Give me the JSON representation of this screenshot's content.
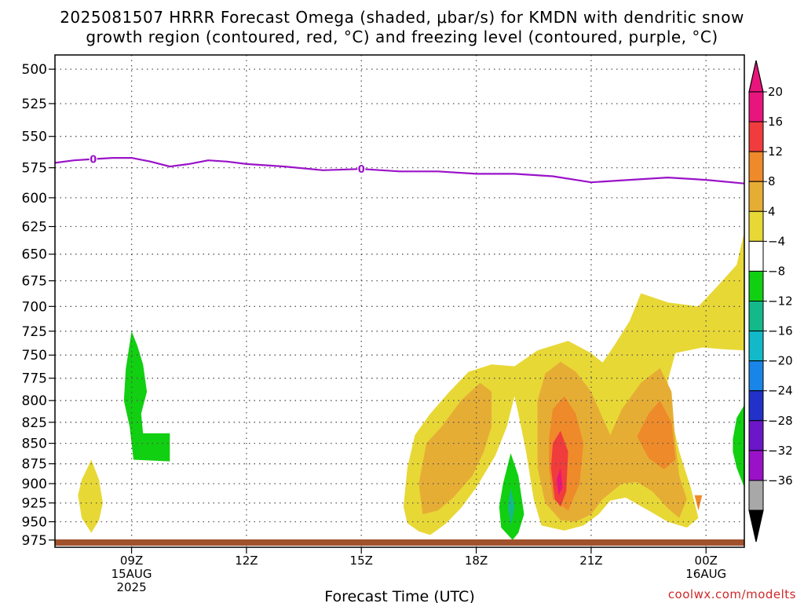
{
  "title_line1": "2025081507 HRRR Forecast Omega (shaded, μbar/s) for KMDN with dendritic snow",
  "title_line2": "growth region (contoured, red, °C) and freezing level (contoured, purple, °C)",
  "credit": "coolwx.com/modelts",
  "chart_data": {
    "type": "heatmap",
    "xlabel": "Forecast Time (UTC)",
    "ylabel": "",
    "x_ticks": [
      {
        "label": "09Z",
        "sub1": "15AUG",
        "sub2": "2025",
        "hour": 9
      },
      {
        "label": "12Z",
        "sub1": "",
        "sub2": "",
        "hour": 12
      },
      {
        "label": "15Z",
        "sub1": "",
        "sub2": "",
        "hour": 15
      },
      {
        "label": "18Z",
        "sub1": "",
        "sub2": "",
        "hour": 18
      },
      {
        "label": "21Z",
        "sub1": "",
        "sub2": "",
        "hour": 21
      },
      {
        "label": "00Z",
        "sub1": "16AUG",
        "sub2": "",
        "hour": 24
      }
    ],
    "xlim": [
      7.0,
      25.0
    ],
    "ylim": [
      985,
      490
    ],
    "y_ticks": [
      500,
      525,
      550,
      575,
      600,
      625,
      650,
      675,
      700,
      725,
      750,
      775,
      800,
      825,
      850,
      875,
      900,
      925,
      950,
      975
    ],
    "y_scale": "log-pressure",
    "grid": true,
    "freezing_level": {
      "label": "0",
      "label_hours": [
        8,
        15
      ],
      "points": [
        [
          7.0,
          571
        ],
        [
          7.5,
          569
        ],
        [
          8,
          568
        ],
        [
          8.5,
          567
        ],
        [
          9,
          567
        ],
        [
          9.5,
          570
        ],
        [
          10,
          574
        ],
        [
          10.5,
          572
        ],
        [
          11,
          569
        ],
        [
          11.5,
          570
        ],
        [
          12,
          572
        ],
        [
          13,
          574
        ],
        [
          14,
          577
        ],
        [
          15,
          576
        ],
        [
          16,
          578
        ],
        [
          17,
          578
        ],
        [
          18,
          580
        ],
        [
          19,
          580
        ],
        [
          20,
          582
        ],
        [
          21,
          587
        ],
        [
          22,
          585
        ],
        [
          23,
          583
        ],
        [
          24,
          585
        ],
        [
          25,
          588
        ]
      ]
    },
    "colorbar": {
      "levels": [
        {
          "label": "20",
          "color": "#e8157d"
        },
        {
          "label": "16",
          "color": "#f03c3c"
        },
        {
          "label": "12",
          "color": "#ee8a2a"
        },
        {
          "label": "8",
          "color": "#e6ad35"
        },
        {
          "label": "4",
          "color": "#e8d836"
        },
        {
          "label": "−4",
          "color": "#ffffff"
        },
        {
          "label": "−8",
          "color": "#11cf11"
        },
        {
          "label": "−12",
          "color": "#14b98a"
        },
        {
          "label": "−16",
          "color": "#12b9c8"
        },
        {
          "label": "−20",
          "color": "#1a85e8"
        },
        {
          "label": "−24",
          "color": "#2231c8"
        },
        {
          "label": "−28",
          "color": "#6b16c8"
        },
        {
          "label": "−32",
          "color": "#9a12c8"
        },
        {
          "label": "−36",
          "color": "#a8a8a8"
        }
      ],
      "top_color": "#e8157d",
      "bottom_color": "#000000"
    },
    "shaded_regions": [
      {
        "level": "4",
        "color": "#e8d836",
        "points": [
          [
            16.2,
            952
          ],
          [
            16.1,
            930
          ],
          [
            16.2,
            880
          ],
          [
            16.4,
            840
          ],
          [
            16.8,
            815
          ],
          [
            17.3,
            790
          ],
          [
            17.8,
            768
          ],
          [
            18.4,
            760
          ],
          [
            19.0,
            762
          ],
          [
            19.6,
            745
          ],
          [
            20.4,
            735
          ],
          [
            21.0,
            748
          ],
          [
            21.3,
            758
          ],
          [
            21.6,
            740
          ],
          [
            22.0,
            715
          ],
          [
            22.3,
            687
          ],
          [
            23.0,
            696
          ],
          [
            23.8,
            700
          ],
          [
            24.3,
            680
          ],
          [
            24.8,
            660
          ],
          [
            25.0,
            630
          ],
          [
            25.0,
            745
          ],
          [
            24.5,
            744
          ],
          [
            23.9,
            742
          ],
          [
            23.2,
            748
          ],
          [
            23.0,
            778
          ],
          [
            23.1,
            820
          ],
          [
            23.3,
            860
          ],
          [
            23.6,
            905
          ],
          [
            23.8,
            945
          ],
          [
            23.5,
            958
          ],
          [
            23.0,
            950
          ],
          [
            22.5,
            935
          ],
          [
            21.9,
            918
          ],
          [
            21.5,
            922
          ],
          [
            21.2,
            940
          ],
          [
            20.8,
            955
          ],
          [
            20.3,
            962
          ],
          [
            19.7,
            955
          ],
          [
            19.5,
            920
          ],
          [
            19.3,
            860
          ],
          [
            19.1,
            815
          ],
          [
            19.0,
            795
          ],
          [
            18.8,
            830
          ],
          [
            18.5,
            865
          ],
          [
            18.0,
            905
          ],
          [
            17.6,
            932
          ],
          [
            17.2,
            953
          ],
          [
            16.8,
            968
          ],
          [
            16.5,
            963
          ]
        ]
      },
      {
        "level": "8",
        "color": "#e6ad35",
        "points": [
          [
            16.6,
            940
          ],
          [
            16.5,
            900
          ],
          [
            16.7,
            850
          ],
          [
            17.1,
            830
          ],
          [
            17.6,
            800
          ],
          [
            18.1,
            780
          ],
          [
            18.4,
            790
          ],
          [
            18.4,
            830
          ],
          [
            18.2,
            860
          ],
          [
            17.9,
            890
          ],
          [
            17.4,
            918
          ],
          [
            17.0,
            935
          ]
        ]
      },
      {
        "level": "8",
        "color": "#e6ad35",
        "points": [
          [
            19.6,
            800
          ],
          [
            19.8,
            770
          ],
          [
            20.2,
            757
          ],
          [
            20.6,
            768
          ],
          [
            21.0,
            790
          ],
          [
            21.3,
            820
          ],
          [
            21.5,
            840
          ],
          [
            21.8,
            810
          ],
          [
            22.3,
            780
          ],
          [
            22.8,
            764
          ],
          [
            23.1,
            790
          ],
          [
            23.2,
            850
          ],
          [
            23.3,
            890
          ],
          [
            23.5,
            920
          ],
          [
            23.3,
            945
          ],
          [
            23.0,
            932
          ],
          [
            22.6,
            910
          ],
          [
            22.2,
            898
          ],
          [
            21.8,
            900
          ],
          [
            21.3,
            920
          ],
          [
            21.0,
            940
          ],
          [
            20.6,
            950
          ],
          [
            20.2,
            948
          ],
          [
            19.8,
            925
          ],
          [
            19.6,
            880
          ]
        ]
      },
      {
        "level": "12",
        "color": "#ee8a2a",
        "points": [
          [
            19.9,
            845
          ],
          [
            20.0,
            810
          ],
          [
            20.3,
            795
          ],
          [
            20.6,
            815
          ],
          [
            20.8,
            850
          ],
          [
            20.7,
            900
          ],
          [
            20.4,
            935
          ],
          [
            20.0,
            920
          ],
          [
            19.9,
            880
          ]
        ]
      },
      {
        "level": "12",
        "color": "#ee8a2a",
        "points": [
          [
            22.2,
            842
          ],
          [
            22.5,
            815
          ],
          [
            22.8,
            800
          ],
          [
            23.1,
            825
          ],
          [
            23.2,
            870
          ],
          [
            22.9,
            882
          ],
          [
            22.5,
            868
          ]
        ]
      },
      {
        "level": "12",
        "color": "#ee8a2a",
        "points": [
          [
            23.7,
            915
          ],
          [
            23.8,
            935
          ],
          [
            23.9,
            915
          ]
        ]
      },
      {
        "level": "16",
        "color": "#f03c3c",
        "points": [
          [
            19.95,
            880
          ],
          [
            20.0,
            850
          ],
          [
            20.2,
            835
          ],
          [
            20.4,
            860
          ],
          [
            20.35,
            910
          ],
          [
            20.2,
            930
          ],
          [
            20.05,
            920
          ]
        ]
      },
      {
        "level": "20",
        "color": "#e8157d",
        "points": [
          [
            20.1,
            895
          ],
          [
            20.2,
            880
          ],
          [
            20.25,
            905
          ],
          [
            20.15,
            915
          ]
        ]
      },
      {
        "level": "4",
        "color": "#e8d836",
        "points": [
          [
            7.6,
            915
          ],
          [
            7.7,
            895
          ],
          [
            7.95,
            870
          ],
          [
            8.15,
            895
          ],
          [
            8.25,
            925
          ],
          [
            8.15,
            948
          ],
          [
            7.95,
            965
          ],
          [
            7.7,
            945
          ]
        ]
      },
      {
        "level": "-4",
        "color": "#11cf11",
        "points": [
          [
            8.8,
            800
          ],
          [
            8.85,
            765
          ],
          [
            9.0,
            725
          ],
          [
            9.15,
            740
          ],
          [
            9.3,
            760
          ],
          [
            9.4,
            790
          ],
          [
            9.25,
            815
          ],
          [
            9.3,
            838
          ],
          [
            10.0,
            838
          ],
          [
            10.0,
            872
          ],
          [
            9.05,
            870
          ],
          [
            8.95,
            830
          ]
        ]
      },
      {
        "level": "-4",
        "color": "#11cf11",
        "points": [
          [
            18.6,
            930
          ],
          [
            18.7,
            900
          ],
          [
            18.9,
            862
          ],
          [
            19.1,
            890
          ],
          [
            19.25,
            940
          ],
          [
            19.1,
            965
          ],
          [
            18.95,
            975
          ],
          [
            18.65,
            958
          ]
        ]
      },
      {
        "level": "-8",
        "color": "#14b98a",
        "points": [
          [
            18.82,
            930
          ],
          [
            18.9,
            905
          ],
          [
            19.0,
            930
          ],
          [
            18.92,
            955
          ]
        ]
      },
      {
        "level": "-4",
        "color": "#11cf11",
        "points": [
          [
            24.7,
            845
          ],
          [
            24.8,
            820
          ],
          [
            25.0,
            805
          ],
          [
            25.0,
            905
          ],
          [
            24.8,
            880
          ],
          [
            24.7,
            860
          ]
        ]
      }
    ]
  }
}
